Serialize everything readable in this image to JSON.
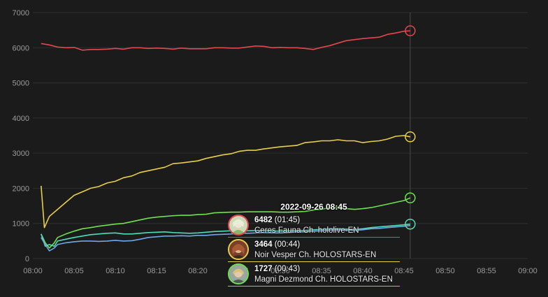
{
  "chart_data": {
    "type": "line",
    "title": "",
    "xlabel": "",
    "ylabel": "",
    "ylim": [
      0,
      7000
    ],
    "xlim": [
      "08:00",
      "09:00"
    ],
    "x_ticks": [
      "08:00",
      "08:05",
      "08:10",
      "08:15",
      "08:20",
      "08:25",
      "08:30",
      "08:35",
      "08:40",
      "08:45",
      "08:50",
      "08:55",
      "09:00"
    ],
    "y_ticks": [
      "0",
      "1000",
      "2000",
      "3000",
      "4000",
      "5000",
      "6000",
      "7000"
    ],
    "grid": true,
    "legend": "none",
    "series": [
      {
        "color": "#e0484d",
        "x": [
          1,
          2,
          3,
          4,
          5,
          6,
          7,
          8,
          9,
          10,
          11,
          12,
          13,
          14,
          15,
          16,
          17,
          18,
          19,
          20,
          21,
          22,
          23,
          24,
          25,
          26,
          27,
          28,
          29,
          30,
          31,
          32,
          33,
          34,
          35,
          36,
          37,
          38,
          39,
          40,
          41,
          42,
          43,
          44,
          45,
          45.75
        ],
        "values": [
          6120,
          6080,
          6020,
          6000,
          6010,
          5930,
          5950,
          5950,
          5960,
          5980,
          5960,
          6000,
          6000,
          5980,
          5990,
          5980,
          5960,
          5990,
          5970,
          5970,
          5970,
          6000,
          6000,
          5990,
          5990,
          6020,
          6050,
          6040,
          6000,
          6010,
          6000,
          6000,
          5980,
          5950,
          6010,
          6060,
          6130,
          6200,
          6230,
          6260,
          6280,
          6300,
          6380,
          6420,
          6470,
          6482
        ]
      },
      {
        "color": "#e8cf47",
        "x": [
          1,
          1.4,
          2,
          3,
          4,
          5,
          6,
          7,
          8,
          9,
          10,
          11,
          12,
          13,
          14,
          15,
          16,
          17,
          18,
          19,
          20,
          21,
          22,
          23,
          24,
          25,
          26,
          27,
          28,
          29,
          30,
          31,
          32,
          33,
          34,
          35,
          36,
          37,
          38,
          39,
          40,
          41,
          42,
          43,
          44,
          45,
          45.75
        ],
        "values": [
          2070,
          880,
          1200,
          1400,
          1600,
          1800,
          1900,
          2000,
          2050,
          2150,
          2200,
          2300,
          2350,
          2450,
          2500,
          2550,
          2600,
          2700,
          2720,
          2750,
          2780,
          2850,
          2900,
          2950,
          2980,
          3050,
          3080,
          3080,
          3120,
          3150,
          3180,
          3200,
          3220,
          3300,
          3320,
          3350,
          3350,
          3380,
          3350,
          3350,
          3300,
          3330,
          3350,
          3400,
          3480,
          3500,
          3464
        ]
      },
      {
        "color": "#6fe04f",
        "x": [
          1,
          1.5,
          2,
          2.6,
          3,
          4,
          5,
          6,
          7,
          8,
          9,
          10,
          11,
          12,
          13,
          14,
          15,
          16,
          17,
          18,
          19,
          20,
          21,
          22,
          23,
          24,
          25,
          26,
          27,
          28,
          29,
          30,
          31,
          32,
          33,
          34,
          35,
          36,
          37,
          38,
          39,
          40,
          41,
          42,
          43,
          44,
          45,
          45.75
        ],
        "values": [
          700,
          450,
          300,
          450,
          600,
          700,
          780,
          850,
          880,
          920,
          950,
          980,
          1000,
          1050,
          1100,
          1150,
          1180,
          1200,
          1220,
          1230,
          1230,
          1250,
          1260,
          1300,
          1310,
          1320,
          1320,
          1330,
          1330,
          1330,
          1330,
          1320,
          1320,
          1330,
          1340,
          1380,
          1400,
          1450,
          1450,
          1420,
          1400,
          1420,
          1450,
          1500,
          1550,
          1600,
          1650,
          1727
        ]
      },
      {
        "color": "#4fdcb8",
        "x": [
          1,
          1.5,
          2,
          2.6,
          3,
          4,
          5,
          6,
          7,
          8,
          9,
          10,
          11,
          12,
          13,
          14,
          15,
          16,
          17,
          18,
          19,
          20,
          21,
          22,
          23,
          24,
          25,
          26,
          27,
          28,
          29,
          30,
          31,
          32,
          33,
          34,
          35,
          36,
          37,
          38,
          39,
          40,
          41,
          42,
          43,
          44,
          45,
          45.75
        ],
        "values": [
          700,
          350,
          400,
          350,
          500,
          550,
          600,
          640,
          680,
          700,
          720,
          730,
          700,
          700,
          720,
          740,
          750,
          760,
          740,
          730,
          720,
          730,
          750,
          770,
          780,
          790,
          800,
          790,
          800,
          800,
          790,
          780,
          790,
          800,
          800,
          820,
          830,
          850,
          850,
          840,
          830,
          850,
          880,
          900,
          920,
          940,
          960,
          980
        ]
      },
      {
        "color": "#6fa8e8",
        "x": [
          1,
          1.5,
          2,
          2.6,
          3,
          4,
          5,
          6,
          7,
          8,
          9,
          10,
          11,
          12,
          13,
          14,
          15,
          16,
          17,
          18,
          19,
          20,
          21,
          22,
          23,
          24,
          25,
          26,
          27,
          28,
          29,
          30,
          31,
          32,
          33,
          34,
          35,
          36,
          37,
          38,
          39,
          40,
          41,
          42,
          43,
          44,
          45,
          45.75
        ],
        "values": [
          600,
          400,
          220,
          300,
          400,
          450,
          480,
          500,
          500,
          490,
          500,
          520,
          500,
          510,
          550,
          600,
          620,
          640,
          640,
          650,
          640,
          660,
          660,
          680,
          690,
          700,
          720,
          720,
          730,
          740,
          730,
          730,
          740,
          760,
          760,
          780,
          790,
          810,
          820,
          810,
          800,
          820,
          850,
          860,
          880,
          900,
          920,
          940
        ]
      }
    ],
    "cursor": {
      "x": "08:45",
      "datetime": "2022-09-26 08:45"
    }
  },
  "tooltip": {
    "time": "2022-09-26 08:45",
    "entries": [
      {
        "value": "6482",
        "duration": "(01:45)",
        "name": "Ceres Fauna Ch. hololive-EN",
        "color": "#e0484d"
      },
      {
        "value": "3464",
        "duration": "(00:44)",
        "name": "Noir Vesper Ch. HOLOSTARS-EN",
        "color": "#e8cf47"
      },
      {
        "value": "1727",
        "duration": "(00:43)",
        "name": "Magni Dezmond Ch. HOLOSTARS-EN",
        "color": "#6fe04f"
      }
    ]
  }
}
